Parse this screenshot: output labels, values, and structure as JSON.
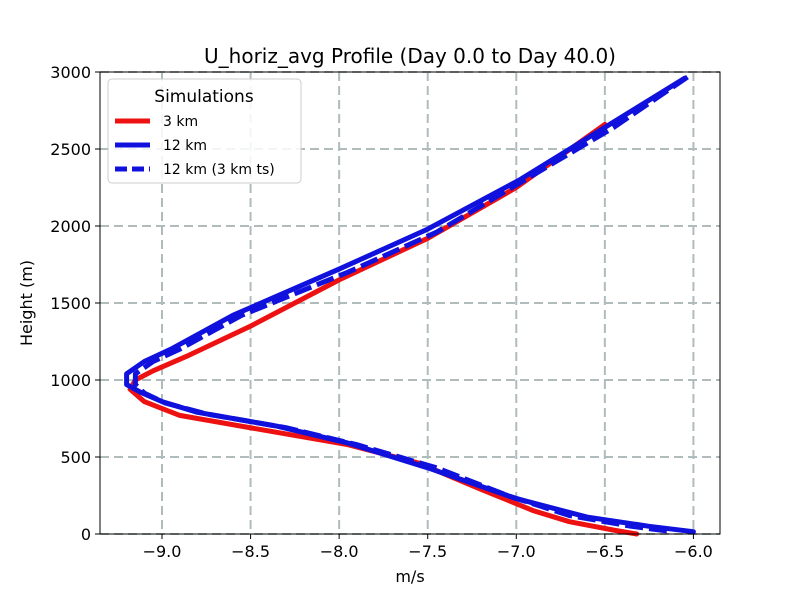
{
  "chart_data": {
    "type": "line",
    "title": "U_horiz_avg Profile (Day 0.0 to Day 40.0)",
    "xlabel": "m/s",
    "ylabel": "Height (m)",
    "xlim": [
      -9.35,
      -5.85
    ],
    "ylim": [
      0,
      3000
    ],
    "x_ticks": [
      -9.0,
      -8.5,
      -8.0,
      -7.5,
      -7.0,
      -6.5,
      -6.0
    ],
    "x_tick_labels": [
      "−9.0",
      "−8.5",
      "−8.0",
      "−7.5",
      "−7.0",
      "−6.5",
      "−6.0"
    ],
    "y_ticks": [
      0,
      500,
      1000,
      1500,
      2000,
      2500,
      3000
    ],
    "y_tick_labels": [
      "0",
      "500",
      "1000",
      "1500",
      "2000",
      "2500",
      "3000"
    ],
    "grid": true,
    "legend": {
      "title": "Simulations",
      "placement": "top-left",
      "entries": [
        "3 km",
        "12 km",
        "12 km (3 km ts)"
      ]
    },
    "series": [
      {
        "name": "3 km",
        "color": "#ee1111",
        "style": "solid",
        "points": [
          [
            -6.32,
            0
          ],
          [
            -6.45,
            25
          ],
          [
            -6.7,
            80
          ],
          [
            -6.9,
            150
          ],
          [
            -7.2,
            290
          ],
          [
            -7.55,
            460
          ],
          [
            -7.95,
            580
          ],
          [
            -8.45,
            680
          ],
          [
            -8.9,
            770
          ],
          [
            -9.1,
            860
          ],
          [
            -9.18,
            940
          ],
          [
            -9.15,
            1000
          ],
          [
            -9.05,
            1060
          ],
          [
            -8.85,
            1160
          ],
          [
            -8.5,
            1350
          ],
          [
            -8.0,
            1650
          ],
          [
            -7.5,
            1920
          ],
          [
            -7.0,
            2250
          ],
          [
            -6.5,
            2660
          ]
        ]
      },
      {
        "name": "12 km",
        "color": "#1111dd",
        "style": "solid",
        "points": [
          [
            -6.0,
            15
          ],
          [
            -6.25,
            50
          ],
          [
            -6.6,
            110
          ],
          [
            -7.0,
            230
          ],
          [
            -7.5,
            430
          ],
          [
            -7.95,
            590
          ],
          [
            -8.35,
            700
          ],
          [
            -8.8,
            790
          ],
          [
            -9.0,
            860
          ],
          [
            -9.12,
            920
          ],
          [
            -9.2,
            970
          ],
          [
            -9.2,
            1040
          ],
          [
            -9.1,
            1120
          ],
          [
            -8.95,
            1200
          ],
          [
            -8.6,
            1420
          ],
          [
            -8.0,
            1720
          ],
          [
            -7.5,
            1980
          ],
          [
            -6.98,
            2300
          ],
          [
            -6.5,
            2640
          ],
          [
            -6.05,
            2960
          ]
        ]
      },
      {
        "name": "12 km (3 km ts)",
        "color": "#1111dd",
        "style": "dashed",
        "points": [
          [
            -6.15,
            20
          ],
          [
            -6.35,
            50
          ],
          [
            -6.7,
            120
          ],
          [
            -7.05,
            250
          ],
          [
            -7.45,
            430
          ],
          [
            -7.9,
            580
          ],
          [
            -8.3,
            690
          ],
          [
            -8.75,
            780
          ],
          [
            -8.98,
            850
          ],
          [
            -9.1,
            915
          ],
          [
            -9.15,
            970
          ],
          [
            -9.15,
            1040
          ],
          [
            -9.05,
            1120
          ],
          [
            -8.9,
            1200
          ],
          [
            -8.55,
            1420
          ],
          [
            -7.95,
            1700
          ],
          [
            -7.45,
            1960
          ],
          [
            -6.95,
            2300
          ],
          [
            -6.45,
            2640
          ],
          [
            -6.03,
            2970
          ]
        ]
      }
    ]
  }
}
